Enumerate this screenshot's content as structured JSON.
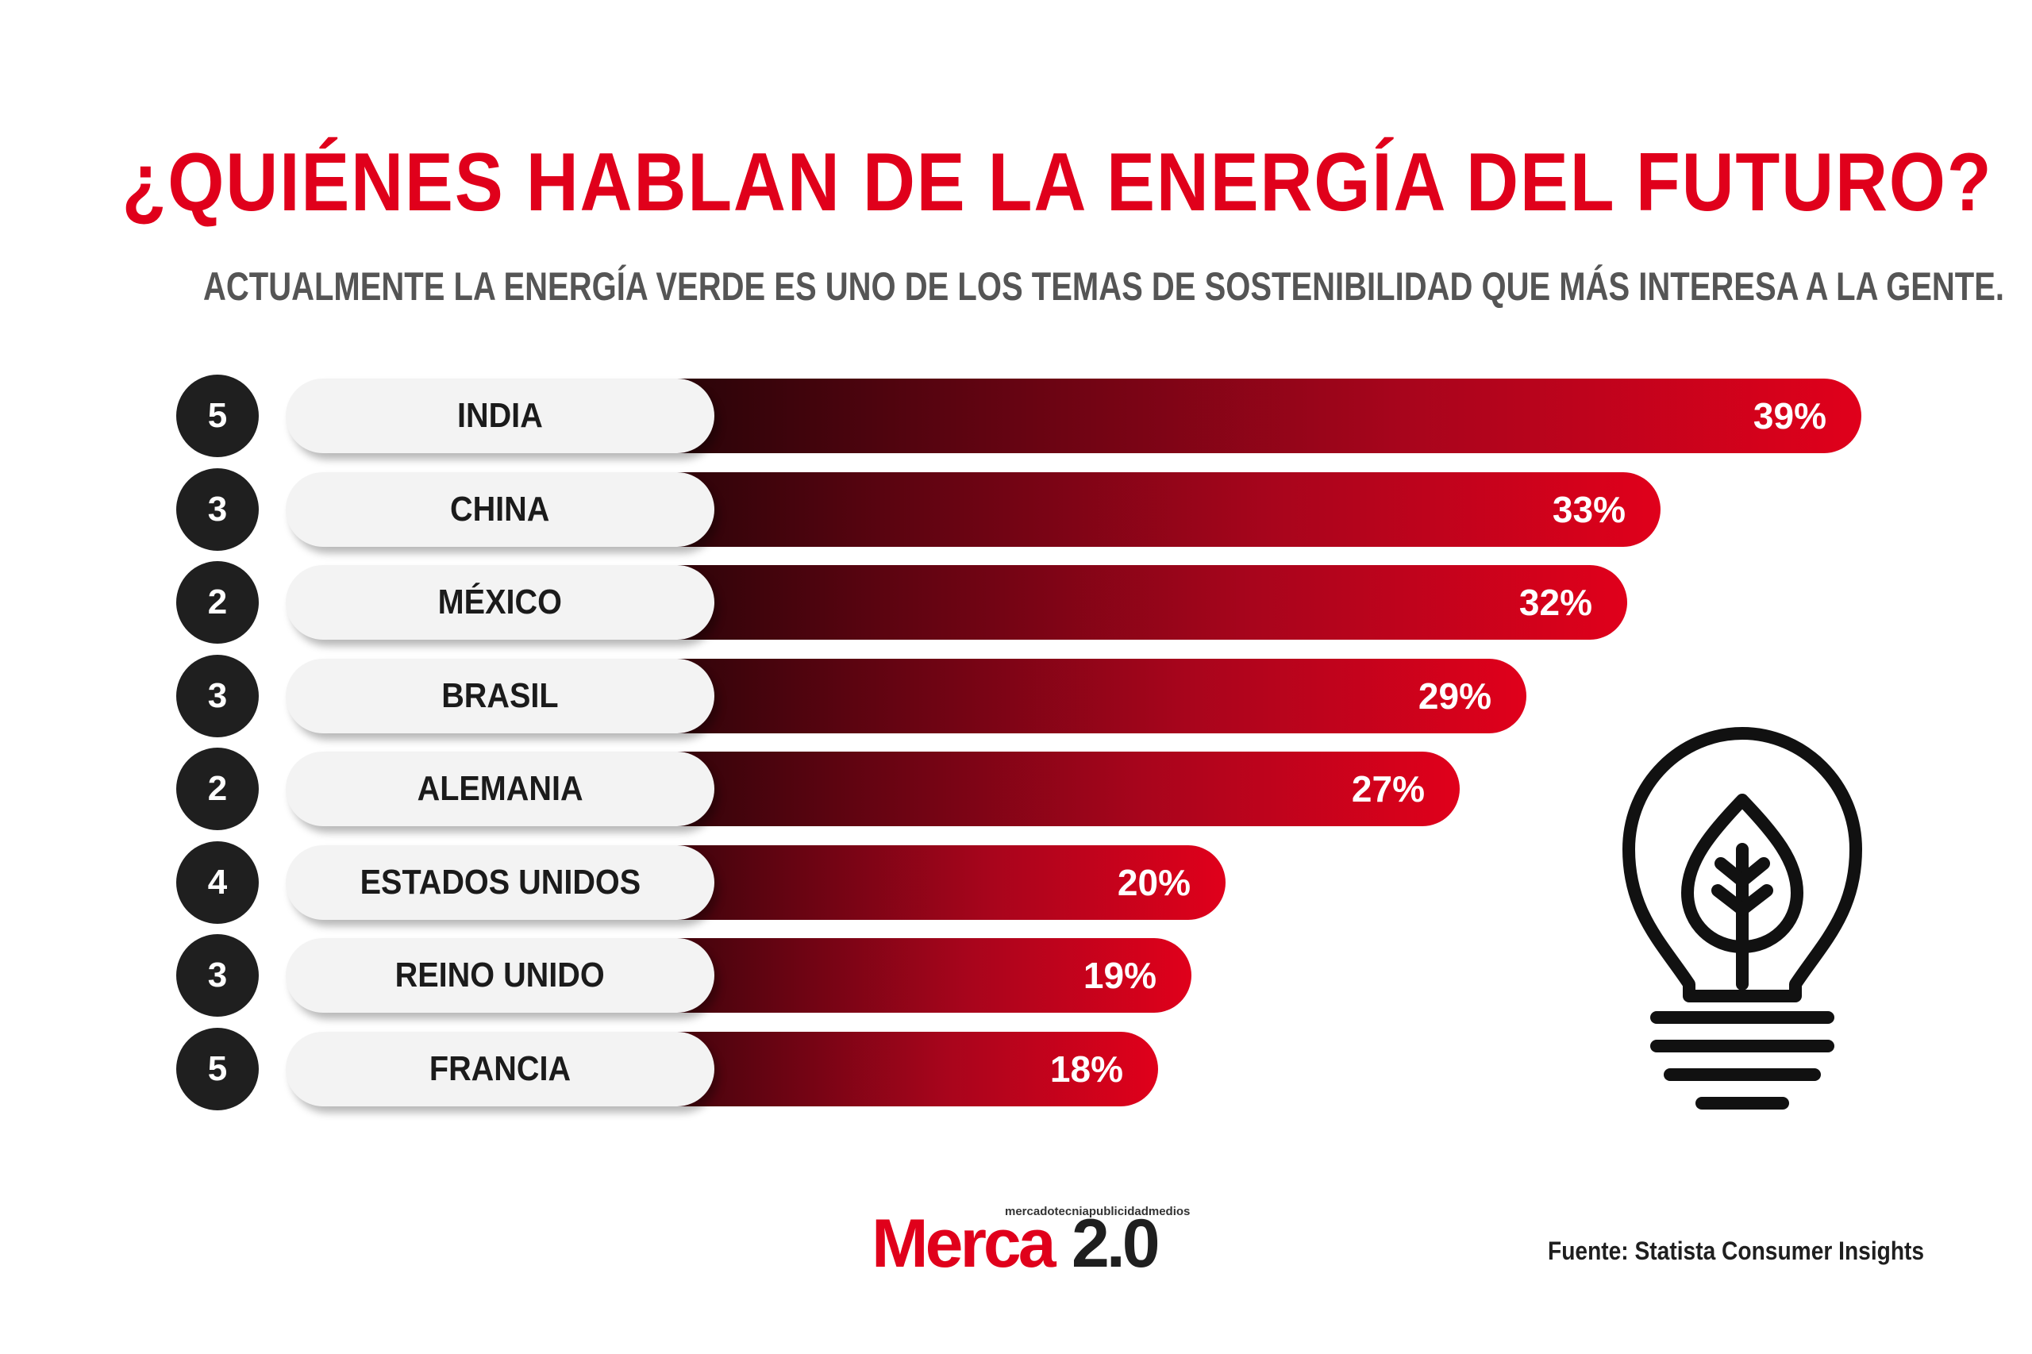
{
  "header": {
    "title": "¿QUIÉNES HABLAN DE LA ENERGÍA DEL FUTURO?",
    "subtitle": "ACTUALMENTE LA ENERGÍA VERDE ES UNO DE LOS TEMAS DE SOSTENIBILIDAD QUE MÁS INTERESA A LA GENTE."
  },
  "chart_data": {
    "type": "bar",
    "orientation": "horizontal",
    "categories": [
      "INDIA",
      "CHINA",
      "MÉXICO",
      "BRASIL",
      "ALEMANIA",
      "ESTADOS UNIDOS",
      "REINO UNIDO",
      "FRANCIA"
    ],
    "ranks": [
      "5",
      "3",
      "2",
      "3",
      "2",
      "4",
      "3",
      "5"
    ],
    "values": [
      39,
      33,
      32,
      29,
      27,
      20,
      19,
      18
    ],
    "value_labels": [
      "39%",
      "33%",
      "32%",
      "29%",
      "27%",
      "20%",
      "19%",
      "18%"
    ],
    "unit": "%",
    "title": "¿QUIÉNES HABLAN DE LA ENERGÍA DEL FUTURO?",
    "xlabel": "",
    "ylabel": "",
    "grid": false,
    "colors": {
      "bar_start": "#140405",
      "bar_end": "#e0001b",
      "rank_circle": "#1f1f1f",
      "label_pill": "#f3f3f3"
    }
  },
  "decoration": {
    "icon": "lightbulb-leaf-icon"
  },
  "footer": {
    "logo_tagline": "mercadotecniapublicidadmedios",
    "logo_text_a": "Merca",
    "logo_text_b": "2.0",
    "source": "Fuente: Statista Consumer Insights"
  },
  "colors": {
    "accent": "#e0001b",
    "subtitle": "#555555",
    "text_dark": "#1f1f1f"
  }
}
